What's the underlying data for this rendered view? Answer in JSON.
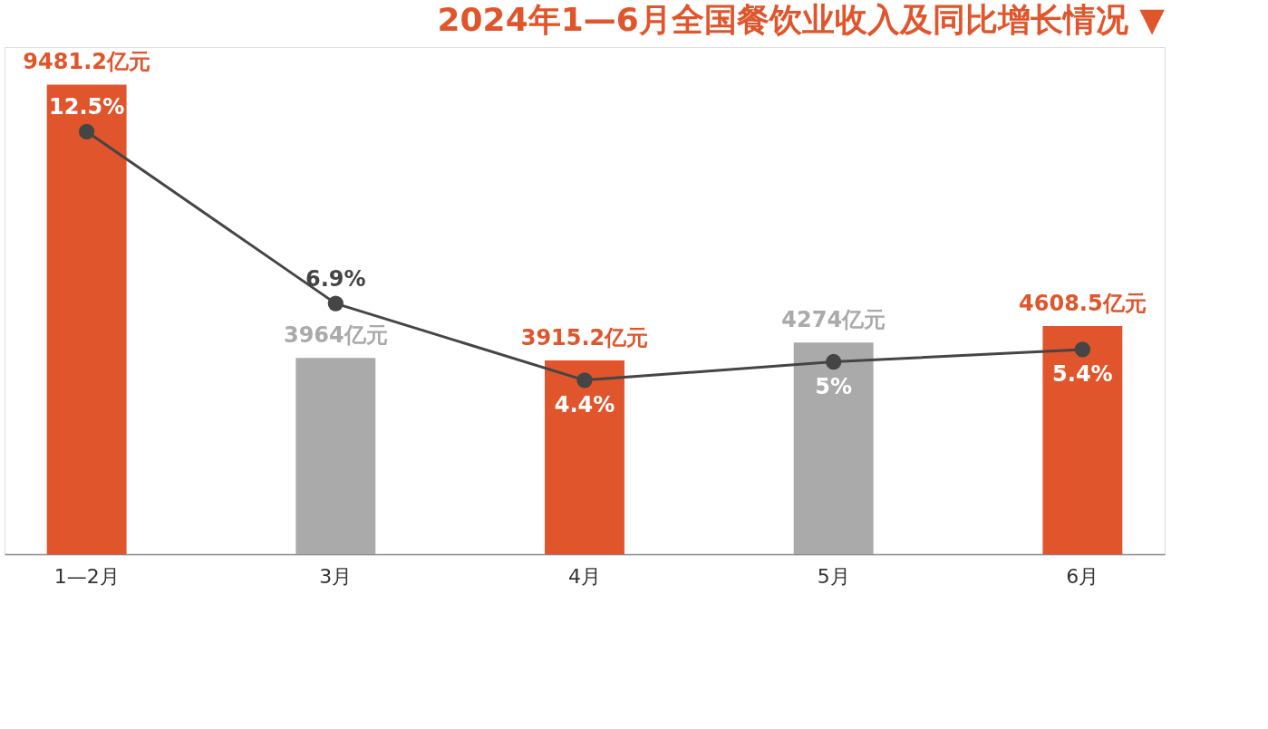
{
  "chart_data": {
    "type": "bar",
    "title": "2024年1—6月全国餐饮业收入及同比增长情况 ▼",
    "categories": [
      "1—2月",
      "3月",
      "4月",
      "5月",
      "6月"
    ],
    "series": [
      {
        "colors": [
          "#e0552b",
          "#aaaaaa",
          "#e0552b",
          "#aaaaaa",
          "#e0552b"
        ],
        "values": [
          9481.2,
          3964,
          3915.2,
          4274,
          4608.5
        ],
        "value_labels": [
          "9481.2亿元",
          "3964亿元",
          "3915.2亿元",
          "4274亿元",
          "4608.5亿元"
        ]
      },
      {
        "type": "line",
        "axis": "y2",
        "color": "#454545",
        "values": [
          12.5,
          6.9,
          4.4,
          5,
          5.4
        ],
        "value_labels": [
          "12.5%",
          "6.9%",
          "4.4%",
          "5%",
          "5.4%"
        ]
      }
    ],
    "marker": "circle",
    "line_style": "solid",
    "grid": false
  }
}
